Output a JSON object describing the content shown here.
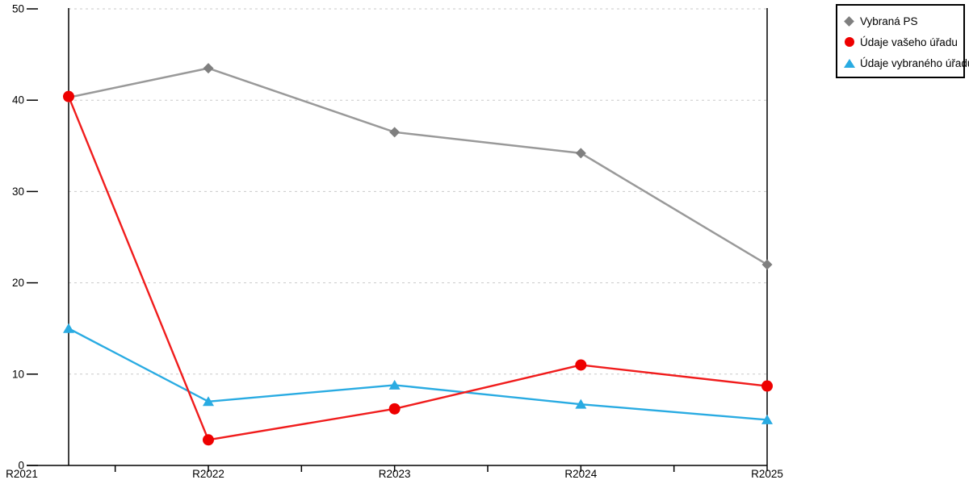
{
  "chart_data": {
    "type": "line",
    "title": "",
    "xlabel": "",
    "ylabel": "",
    "categories": [
      "R2021",
      "R2022",
      "R2023",
      "R2024",
      "R2025"
    ],
    "series": [
      {
        "name": "Vybraná PS",
        "marker": "diamond",
        "color": "#7f7f7f",
        "line_color": "#999999",
        "values": [
          40.3,
          43.5,
          36.5,
          34.2,
          22.0
        ]
      },
      {
        "name": "Údaje vašeho úřadu",
        "marker": "circle",
        "color": "#ee0000",
        "line_color": "#f01c1c",
        "values": [
          40.4,
          2.8,
          6.2,
          11.0,
          8.7
        ]
      },
      {
        "name": "Údaje vybraného úřadu",
        "marker": "triangle",
        "color": "#29abe2",
        "line_color": "#29abe2",
        "values": [
          15.0,
          7.0,
          8.8,
          6.7,
          5.0
        ]
      }
    ],
    "ylim": [
      0,
      50
    ],
    "yticks": [
      0,
      10,
      20,
      30,
      40,
      50
    ],
    "ytick_labels": [
      "0",
      "10",
      "20",
      "30",
      "40",
      "50"
    ],
    "grid": "horizontal-dashed",
    "grid_color": "#c9c9c9",
    "axis_color": "#000000",
    "legend_position": "top-right"
  }
}
